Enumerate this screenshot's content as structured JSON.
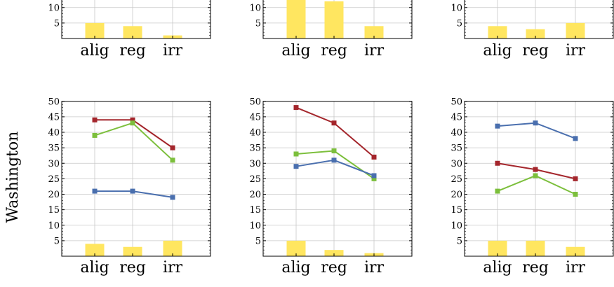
{
  "colors": {
    "red": "#a4262c",
    "green": "#7cbf3c",
    "blue": "#4a6fae",
    "bar": "#ffe660",
    "grid": "#c8c8c8"
  },
  "chart_data": [
    {
      "type": "bar",
      "row": "top",
      "categories": [
        "alig",
        "reg",
        "irr"
      ],
      "bar_values": [
        5,
        4,
        1
      ],
      "yticks": [
        5,
        10
      ],
      "grid": true
    },
    {
      "type": "bar",
      "row": "top",
      "categories": [
        "alig",
        "reg",
        "irr"
      ],
      "bar_values": [
        13,
        12,
        4
      ],
      "yticks": [
        5,
        10
      ],
      "grid": true
    },
    {
      "type": "bar",
      "row": "top",
      "categories": [
        "alig",
        "reg",
        "irr"
      ],
      "bar_values": [
        4,
        3,
        5
      ],
      "yticks": [
        5,
        10
      ],
      "grid": true
    },
    {
      "type": "line",
      "row": "bottom",
      "row_label": "Washington",
      "categories": [
        "alig",
        "reg",
        "irr"
      ],
      "ylim": [
        0,
        50
      ],
      "yticks": [
        5,
        10,
        15,
        20,
        25,
        30,
        35,
        40,
        45,
        50
      ],
      "grid": true,
      "bar_values": [
        4,
        3,
        5
      ],
      "series": [
        {
          "color": "red",
          "values": [
            44,
            44,
            35
          ]
        },
        {
          "color": "green",
          "values": [
            39,
            43,
            31
          ]
        },
        {
          "color": "blue",
          "values": [
            21,
            21,
            19
          ]
        }
      ]
    },
    {
      "type": "line",
      "row": "bottom",
      "categories": [
        "alig",
        "reg",
        "irr"
      ],
      "ylim": [
        0,
        50
      ],
      "yticks": [
        5,
        10,
        15,
        20,
        25,
        30,
        35,
        40,
        45,
        50
      ],
      "grid": true,
      "bar_values": [
        5,
        2,
        1
      ],
      "series": [
        {
          "color": "red",
          "values": [
            48,
            43,
            32
          ]
        },
        {
          "color": "green",
          "values": [
            33,
            34,
            25
          ]
        },
        {
          "color": "blue",
          "values": [
            29,
            31,
            26
          ]
        }
      ]
    },
    {
      "type": "line",
      "row": "bottom",
      "categories": [
        "alig",
        "reg",
        "irr"
      ],
      "ylim": [
        0,
        50
      ],
      "yticks": [
        5,
        10,
        15,
        20,
        25,
        30,
        35,
        40,
        45,
        50
      ],
      "grid": true,
      "bar_values": [
        5,
        5,
        3
      ],
      "series": [
        {
          "color": "red",
          "values": [
            30,
            28,
            25
          ]
        },
        {
          "color": "green",
          "values": [
            21,
            26,
            20
          ]
        },
        {
          "color": "blue",
          "values": [
            42,
            43,
            38
          ]
        }
      ]
    }
  ]
}
